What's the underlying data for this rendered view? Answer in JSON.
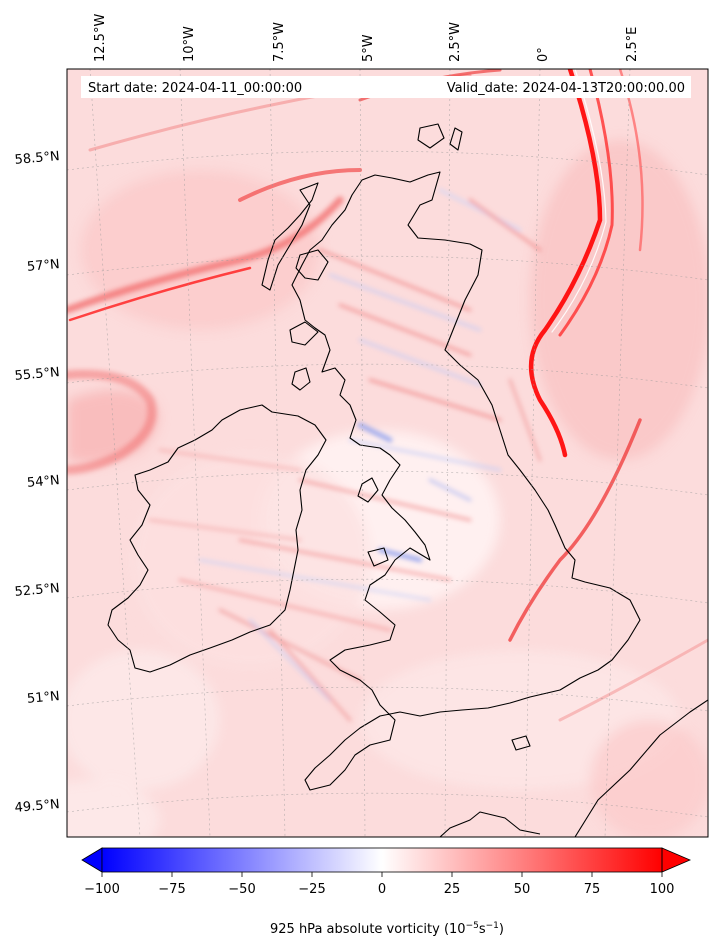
{
  "map": {
    "header": {
      "start_date": "Start date: 2024-04-11_00:00:00",
      "valid_date": "Valid_date: 2024-04-13T20:00:00.00"
    },
    "longitude_labels": [
      "12.5°W",
      "10°W",
      "7.5°W",
      "5°W",
      "2.5°W",
      "0°",
      "2.5°E"
    ],
    "latitude_labels": [
      "58.5°N",
      "57°N",
      "55.5°N",
      "54°N",
      "52.5°N",
      "51°N",
      "49.5°N"
    ],
    "field": "925 hPa absolute vorticity",
    "projection": "Lambert conformal",
    "colors": {
      "negative_max": "#0000ff",
      "zero": "#ffffff",
      "positive_max": "#ff0000",
      "coastline": "#000000"
    }
  },
  "colorbar": {
    "ticks": [
      -100,
      -75,
      -50,
      -25,
      0,
      25,
      50,
      75,
      100
    ],
    "tick_labels": [
      "−100",
      "−75",
      "−50",
      "−25",
      "0",
      "25",
      "50",
      "75",
      "100"
    ],
    "min": -100,
    "max": 100,
    "extend": "both",
    "label": "925 hPa absolute vorticity (10",
    "label_exp1": "−5",
    "label_mid": "s",
    "label_exp2": "−1",
    "label_end": ")"
  }
}
